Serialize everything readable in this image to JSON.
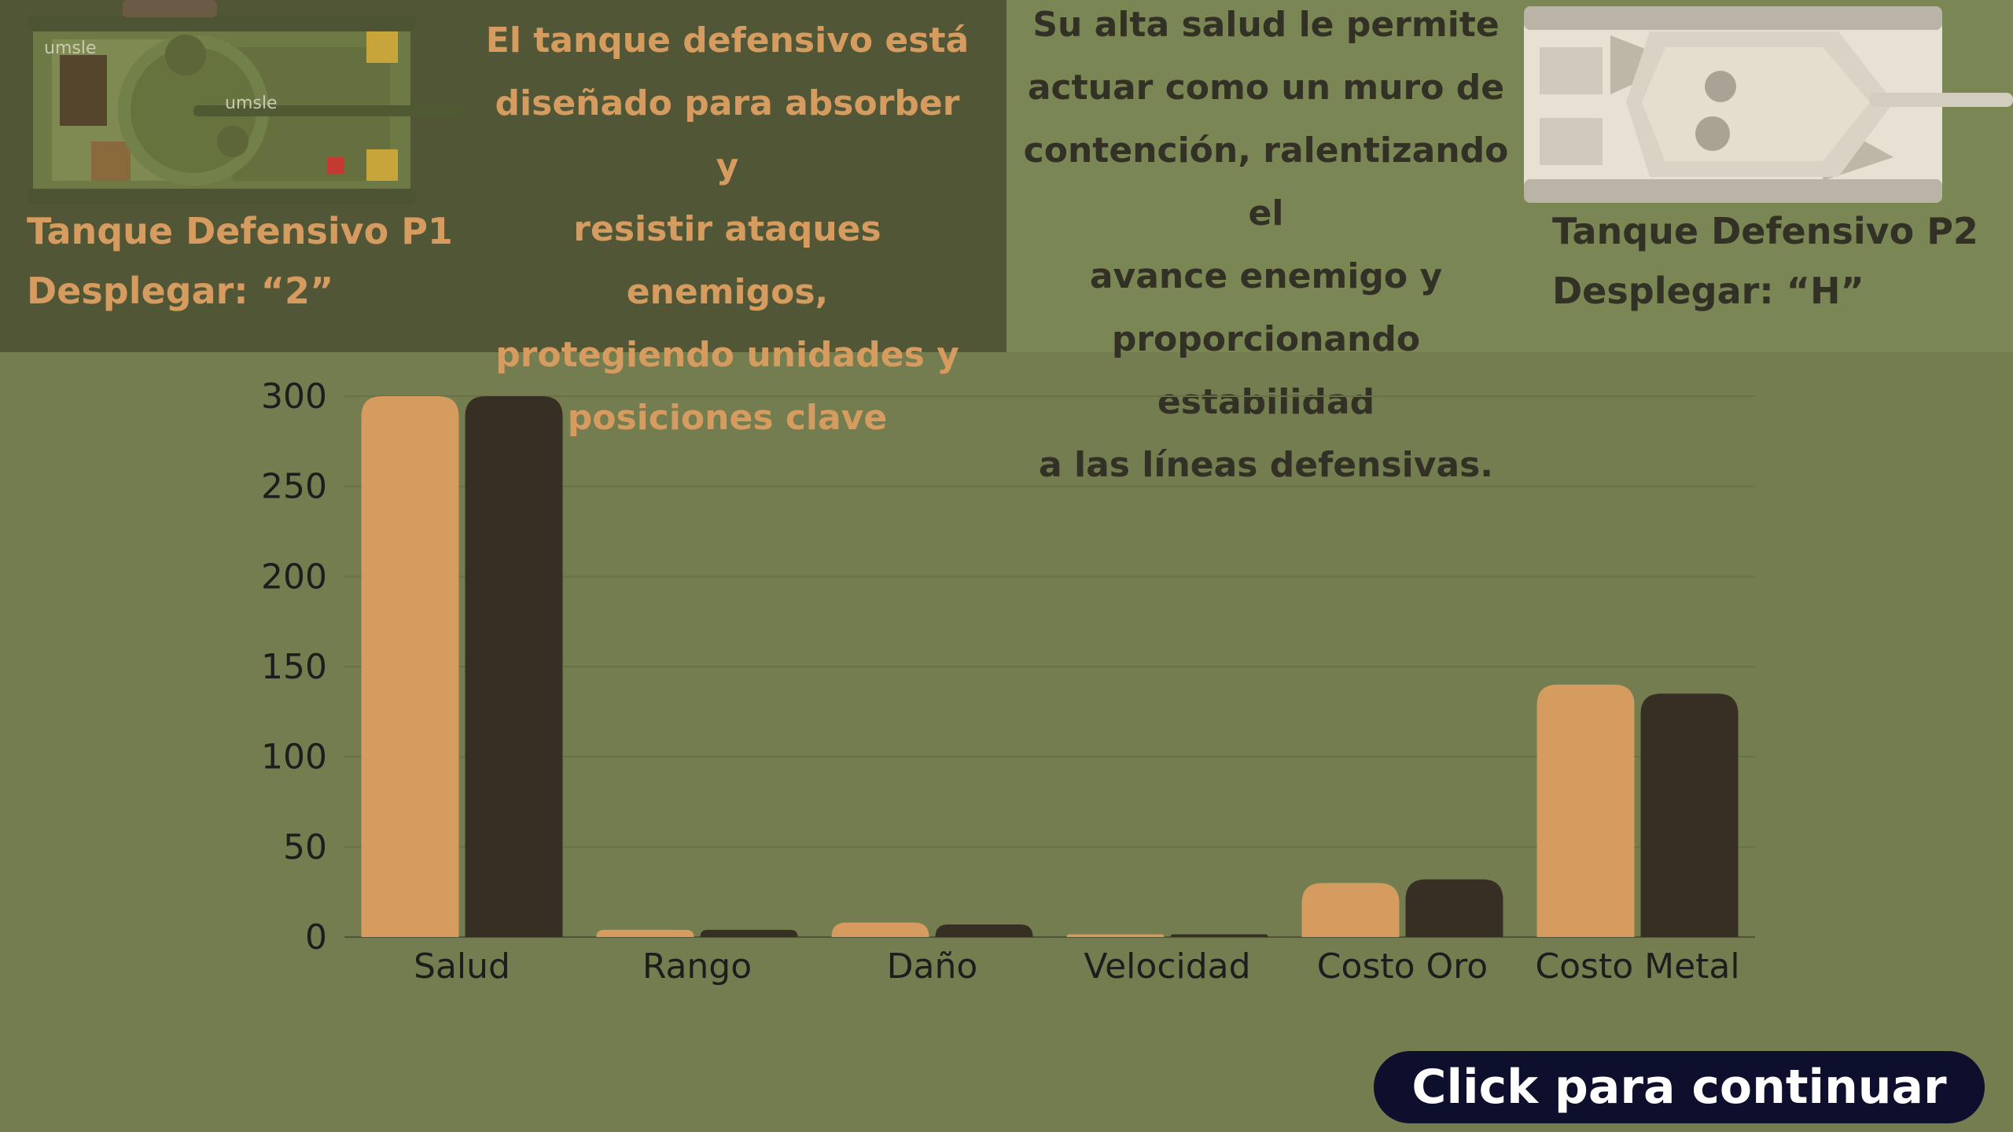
{
  "colors": {
    "background": "#747d50",
    "left_panel": "#505636",
    "right_panel": "#7a8653",
    "p1_series": "#d69b5e",
    "p2_series": "#372f23",
    "button_bg": "#0d0f2c",
    "button_text": "#ffffff"
  },
  "tank_p1": {
    "name": "Tanque Defensivo P1",
    "deploy": "Desplegar: “2”",
    "image": "green-camouflage-tank-top-view"
  },
  "tank_p2": {
    "name": "Tanque Defensivo P2",
    "deploy": "Desplegar: “H”",
    "image": "white-camouflage-tank-top-view"
  },
  "description_left": {
    "lines": [
      "El tanque defensivo está",
      "diseñado para absorber y",
      "resistir ataques enemigos,",
      "protegiendo unidades y",
      "posiciones clave"
    ]
  },
  "description_right": {
    "lines": [
      "Su alta salud le permite",
      "actuar como un muro de",
      "contención, ralentizando el",
      "avance enemigo y",
      "proporcionando estabilidad",
      "a las líneas defensivas."
    ]
  },
  "chart_data": {
    "type": "bar",
    "title": "",
    "xlabel": "",
    "ylabel": "",
    "categories": [
      "Salud",
      "Rango",
      "Daño",
      "Velocidad",
      "Costo Oro",
      "Costo Metal"
    ],
    "series": [
      {
        "values": [
          300,
          4,
          8,
          1.5,
          30,
          140
        ],
        "color": "#d69b5e"
      },
      {
        "values": [
          300,
          4,
          7,
          1.5,
          32,
          135
        ],
        "color": "#372f23"
      }
    ],
    "ylim": [
      0,
      300
    ],
    "yticks": [
      0,
      50,
      100,
      150,
      200,
      250,
      300
    ],
    "grid": true,
    "legend": "none"
  },
  "button": {
    "label": "Click para continuar"
  }
}
